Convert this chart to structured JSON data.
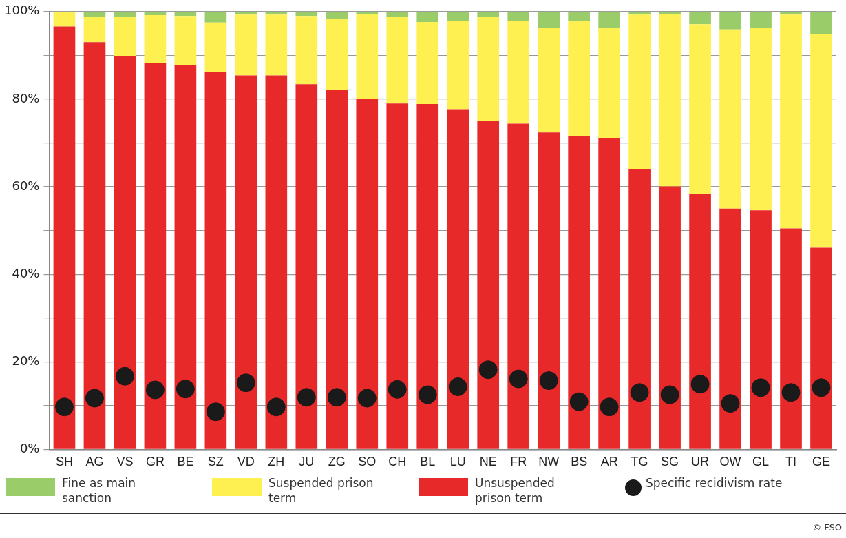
{
  "chart_data": {
    "type": "bar",
    "stacked": true,
    "categories": [
      "SH",
      "AG",
      "VS",
      "GR",
      "BE",
      "SZ",
      "VD",
      "ZH",
      "JU",
      "ZG",
      "SO",
      "CH",
      "BL",
      "LU",
      "NE",
      "FR",
      "NW",
      "BS",
      "AR",
      "TG",
      "SG",
      "UR",
      "OW",
      "GL",
      "TI",
      "GE"
    ],
    "series": [
      {
        "name": "Unsuspended prison term",
        "color": "#e8292a",
        "values": [
          96.6,
          93.0,
          89.9,
          88.3,
          87.7,
          86.2,
          85.4,
          85.4,
          83.4,
          82.2,
          80.0,
          79.0,
          78.9,
          77.7,
          75.0,
          74.4,
          72.4,
          71.6,
          71.0,
          64.0,
          60.1,
          58.3,
          55.0,
          54.6,
          50.5,
          46.1
        ]
      },
      {
        "name": "Suspended prison term",
        "color": "#fef050",
        "values": [
          3.4,
          5.7,
          8.9,
          10.9,
          11.3,
          11.3,
          13.9,
          13.9,
          15.6,
          16.2,
          19.5,
          19.8,
          18.7,
          20.2,
          23.8,
          23.5,
          23.9,
          26.3,
          25.3,
          35.3,
          39.3,
          38.8,
          40.9,
          41.7,
          48.8,
          48.7
        ]
      },
      {
        "name": "Fine as main sanction",
        "color": "#9bcc6a",
        "values": [
          0,
          1.3,
          1.2,
          0.8,
          1.0,
          2.5,
          0.7,
          0.7,
          1.0,
          1.6,
          0.5,
          1.2,
          2.4,
          2.1,
          1.2,
          2.1,
          3.7,
          2.1,
          3.7,
          0.7,
          0.6,
          2.9,
          4.1,
          3.7,
          0.7,
          5.2
        ]
      },
      {
        "name": "Specific recidivism rate",
        "type": "scatter",
        "color": "#1a1a1a",
        "x": [
          "SH",
          "AG",
          "VS",
          "GR",
          "BE",
          "SZ",
          "VD",
          "ZH",
          "JU",
          "ZG",
          "SO",
          "CH",
          "BL",
          "LU",
          "NE",
          "FR",
          "NW",
          "BS",
          "AR",
          "TG",
          "SG",
          "UR",
          "OW",
          "GL",
          "TI",
          "GE"
        ],
        "values": [
          9.7,
          11.7,
          16.7,
          13.6,
          13.8,
          8.6,
          15.2,
          9.7,
          11.9,
          11.9,
          11.7,
          13.7,
          12.5,
          14.3,
          18.2,
          16.1,
          15.7,
          10.9,
          9.7,
          13.0,
          12.5,
          14.9,
          10.5,
          14.1,
          13.0,
          14.1
        ]
      }
    ],
    "ylim": [
      0,
      100
    ],
    "yticks": [
      {
        "value": 0,
        "label": "0%"
      },
      {
        "value": 10,
        "label": null
      },
      {
        "value": 20,
        "label": "20%"
      },
      {
        "value": 30,
        "label": null
      },
      {
        "value": 40,
        "label": "40%"
      },
      {
        "value": 50,
        "label": null
      },
      {
        "value": 60,
        "label": "60%"
      },
      {
        "value": 70,
        "label": null
      },
      {
        "value": 80,
        "label": "80%"
      },
      {
        "value": 90,
        "label": null
      },
      {
        "value": 100,
        "label": "100%"
      }
    ],
    "grid": "y",
    "legend": "bottom",
    "marker": "circle",
    "annotations": [
      "© FSO"
    ]
  }
}
